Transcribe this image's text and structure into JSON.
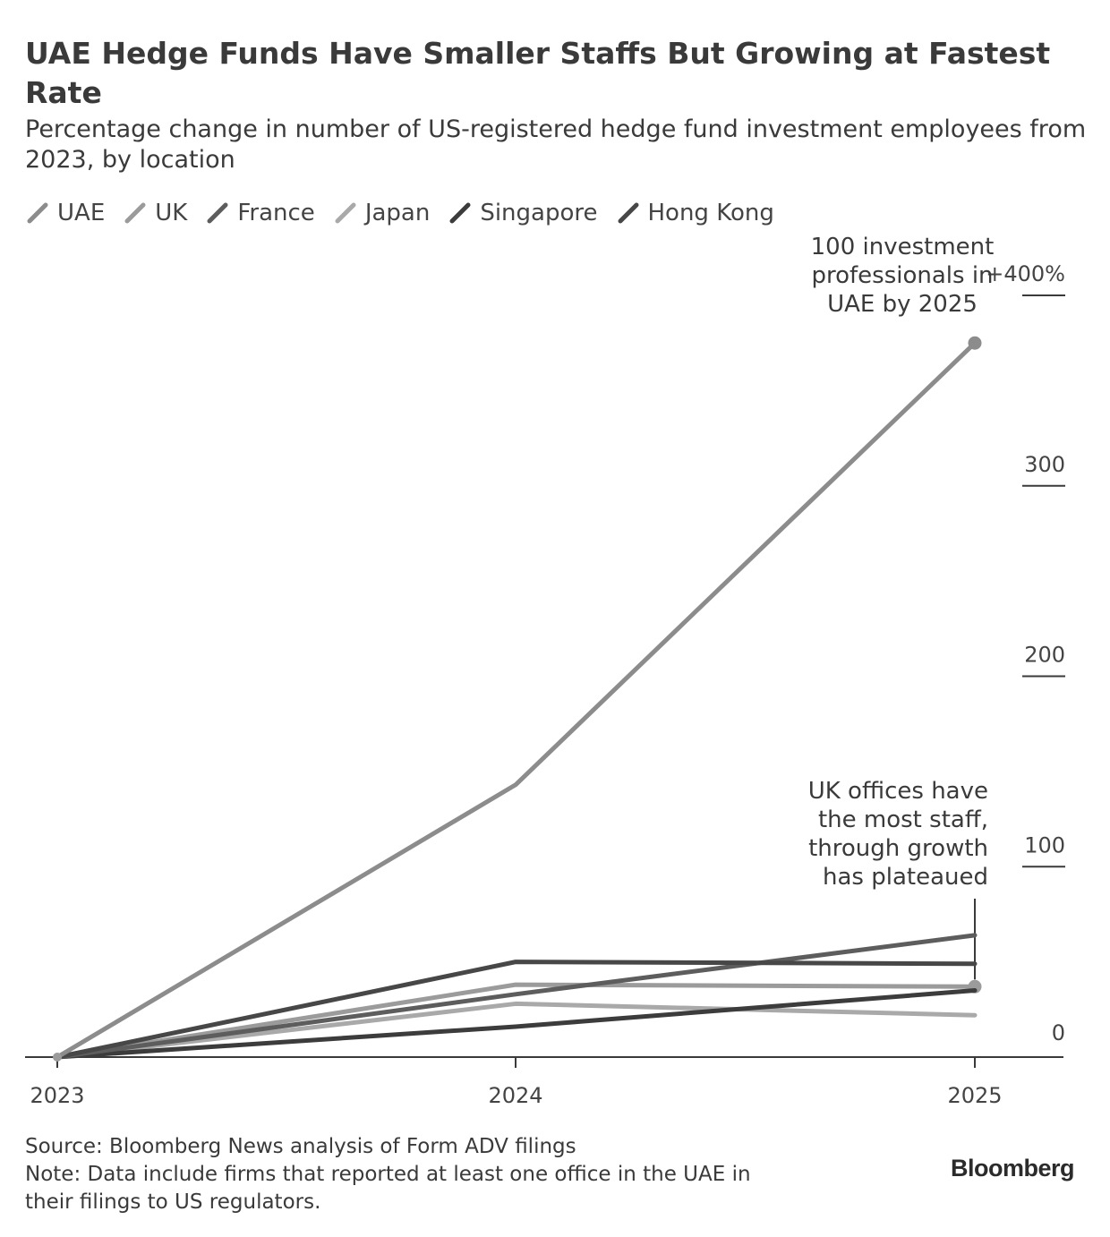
{
  "chart_data": {
    "type": "line",
    "title": "UAE Hedge Funds Have Smaller Staffs But Growing at Fastest Rate",
    "subtitle": "Percentage change in number of US-registered hedge fund investment employees from 2023, by location",
    "x": [
      "2023",
      "2024",
      "2025"
    ],
    "ylim": [
      0,
      400
    ],
    "y_ticks": [
      {
        "value": 0,
        "label": "0"
      },
      {
        "value": 100,
        "label": "100"
      },
      {
        "value": 200,
        "label": "200"
      },
      {
        "value": 300,
        "label": "300"
      },
      {
        "value": 400,
        "label": "+400%"
      }
    ],
    "grid": false,
    "legend_position": "top-left",
    "series": [
      {
        "name": "UAE",
        "values": [
          0,
          143,
          375
        ],
        "color": "#8c8c8d",
        "endpoint_marker": true
      },
      {
        "name": "UK",
        "values": [
          0,
          38,
          37
        ],
        "color": "#9b9b9c",
        "endpoint_marker": true
      },
      {
        "name": "France",
        "values": [
          0,
          33,
          64
        ],
        "color": "#5d5d5e",
        "endpoint_marker": false
      },
      {
        "name": "Japan",
        "values": [
          0,
          28,
          22
        ],
        "color": "#a9a9aa",
        "endpoint_marker": false
      },
      {
        "name": "Singapore",
        "values": [
          0,
          16,
          35
        ],
        "color": "#3c3c3d",
        "endpoint_marker": false
      },
      {
        "name": "Hong Kong",
        "values": [
          0,
          50,
          49
        ],
        "color": "#474748",
        "endpoint_marker": false
      }
    ],
    "annotations": [
      {
        "series": "UAE",
        "x": "2025",
        "text": [
          "100 investment",
          "professionals in",
          "UAE by 2025"
        ]
      },
      {
        "series": "UK",
        "x": "2025",
        "text": [
          "UK offices have",
          "the most staff,",
          "through growth",
          "has plateaued"
        ]
      }
    ]
  },
  "footer": {
    "source": "Source: Bloomberg News analysis of Form ADV filings",
    "note_line1": "Note: Data include firms that reported at least one office in the UAE in",
    "note_line2": "their filings to US regulators."
  },
  "brand": "Bloomberg"
}
